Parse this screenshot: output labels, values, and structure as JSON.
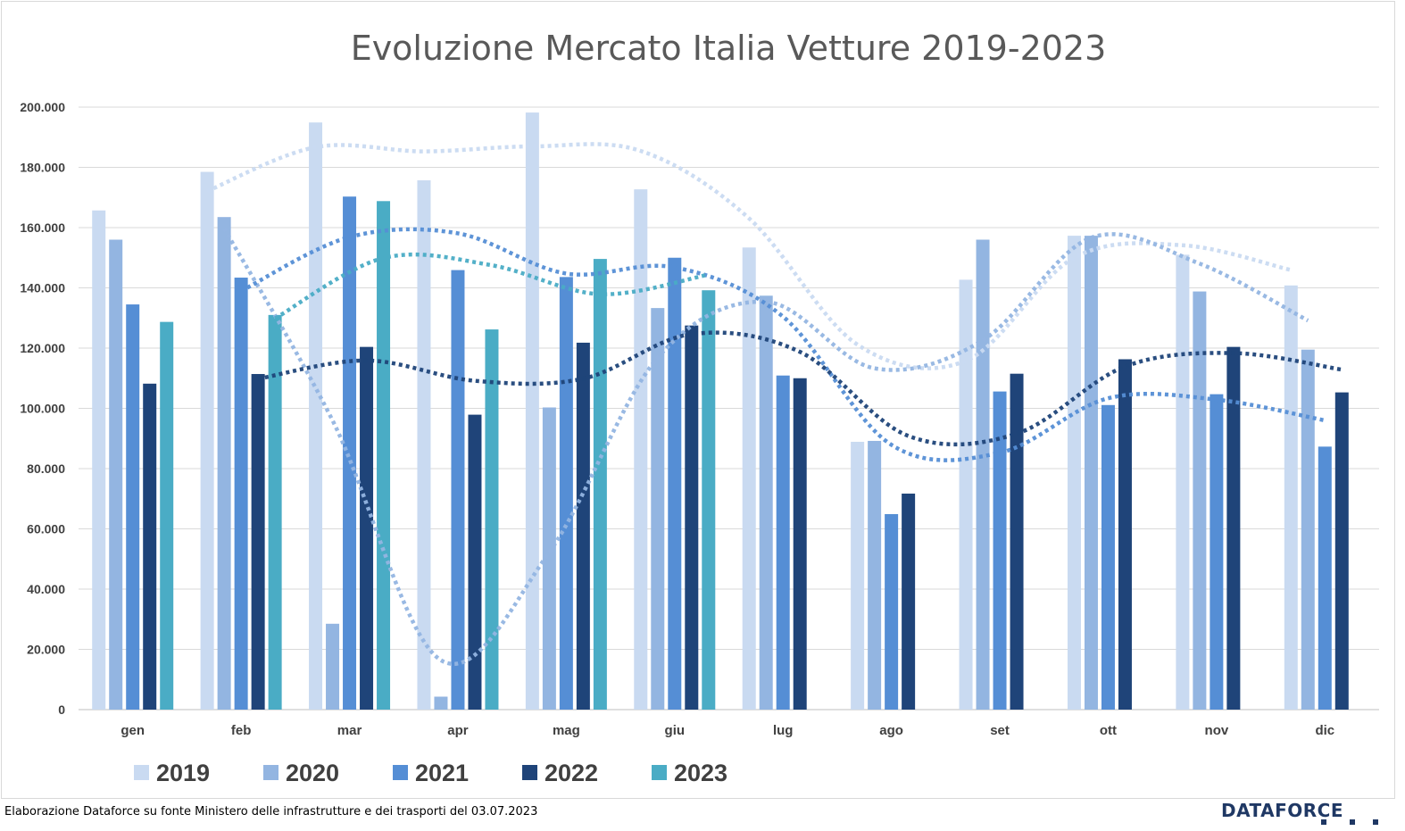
{
  "footer": {
    "source_note": "Elaborazione Dataforce su fonte Ministero delle infrastrutture e dei trasporti del 03.07.2023",
    "brand": "DATAFORCE"
  },
  "chart_data": {
    "type": "bar",
    "title": "Evoluzione Mercato Italia Vetture 2019-2023",
    "xlabel": "",
    "ylabel": "",
    "ylim": [
      0,
      200000
    ],
    "yticks": [
      0,
      20000,
      40000,
      60000,
      80000,
      100000,
      120000,
      140000,
      160000,
      180000,
      200000
    ],
    "ytick_labels": [
      "0",
      "20.000",
      "40.000",
      "60.000",
      "80.000",
      "100.000",
      "120.000",
      "140.000",
      "160.000",
      "180.000",
      "200.000"
    ],
    "grid": true,
    "legend_position": "bottom-left",
    "categories": [
      "gen",
      "feb",
      "mar",
      "apr",
      "mag",
      "giu",
      "lug",
      "ago",
      "set",
      "ott",
      "nov",
      "dic"
    ],
    "trendlines": "dotted moving average (2 periods) per series",
    "series": [
      {
        "name": "2019",
        "color": "#c9daf1",
        "values": [
          165700,
          178500,
          194900,
          175700,
          198200,
          172700,
          153400,
          88900,
          142700,
          157300,
          151000,
          140800
        ]
      },
      {
        "name": "2020",
        "color": "#93b5e1",
        "values": [
          156000,
          163500,
          28500,
          4300,
          100300,
          133300,
          137400,
          89200,
          156000,
          157300,
          138800,
          119500
        ]
      },
      {
        "name": "2021",
        "color": "#558ed5",
        "values": [
          134500,
          143400,
          170300,
          145900,
          143600,
          150000,
          110900,
          64900,
          105600,
          101100,
          104700,
          87300
        ]
      },
      {
        "name": "2022",
        "color": "#1f4479",
        "values": [
          108200,
          111400,
          120400,
          97900,
          121800,
          127500,
          110000,
          71700,
          111500,
          116300,
          120400,
          105300
        ]
      },
      {
        "name": "2023",
        "color": "#4aacc5",
        "values": [
          128700,
          131000,
          168800,
          126200,
          149600,
          139200,
          null,
          null,
          null,
          null,
          null,
          null
        ]
      }
    ]
  }
}
